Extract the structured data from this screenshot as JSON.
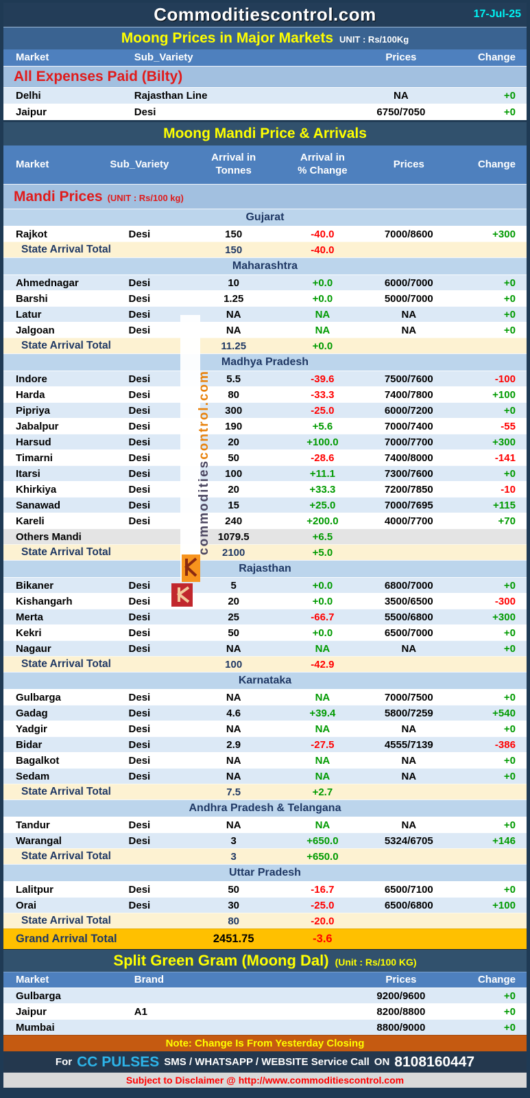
{
  "header": {
    "title": "Commoditiescontrol.com",
    "date": "17-Jul-25"
  },
  "major_markets": {
    "title": "Moong Prices in Major Markets",
    "unit": "UNIT : Rs/100Kg",
    "columns": [
      "Market",
      "Sub_Variety",
      "Prices",
      "Change"
    ],
    "section_label": "All Expenses Paid (Bilty)",
    "rows": [
      {
        "market": "Delhi",
        "sub": "Rajasthan Line",
        "prices": "NA",
        "change": "+0"
      },
      {
        "market": "Jaipur",
        "sub": "Desi",
        "prices": "6750/7050",
        "change": "+0"
      }
    ]
  },
  "mandi": {
    "title": "Moong Mandi Price & Arrivals",
    "columns": [
      "Market",
      "Sub_Variety",
      "Arrival in\nTonnes",
      "Arrival  in\n% Change",
      "Prices",
      "Change"
    ],
    "section_label": "Mandi Prices",
    "section_unit": "(UNIT : Rs/100 kg)",
    "total_label": "State Arrival Total",
    "states": [
      {
        "name": "Gujarat",
        "rows": [
          {
            "market": "Rajkot",
            "sub": "Desi",
            "tonnes": "150",
            "pct": "-40.0",
            "prices": "7000/8600",
            "change": "+300"
          }
        ],
        "total": {
          "tonnes": "150",
          "pct": "-40.0"
        }
      },
      {
        "name": "Maharashtra",
        "rows": [
          {
            "market": "Ahmednagar",
            "sub": "Desi",
            "tonnes": "10",
            "pct": "+0.0",
            "prices": "6000/7000",
            "change": "+0"
          },
          {
            "market": "Barshi",
            "sub": "Desi",
            "tonnes": "1.25",
            "pct": "+0.0",
            "prices": "5000/7000",
            "change": "+0"
          },
          {
            "market": "Latur",
            "sub": "Desi",
            "tonnes": "NA",
            "pct": "NA",
            "prices": "NA",
            "change": "+0"
          },
          {
            "market": "Jalgoan",
            "sub": "Desi",
            "tonnes": "NA",
            "pct": "NA",
            "prices": "NA",
            "change": "+0"
          }
        ],
        "total": {
          "tonnes": "11.25",
          "pct": "+0.0"
        }
      },
      {
        "name": "Madhya Pradesh",
        "rows": [
          {
            "market": "Indore",
            "sub": "Desi",
            "tonnes": "5.5",
            "pct": "-39.6",
            "prices": "7500/7600",
            "change": "-100"
          },
          {
            "market": "Harda",
            "sub": "Desi",
            "tonnes": "80",
            "pct": "-33.3",
            "prices": "7400/7800",
            "change": "+100"
          },
          {
            "market": "Pipriya",
            "sub": "Desi",
            "tonnes": "300",
            "pct": "-25.0",
            "prices": "6000/7200",
            "change": "+0"
          },
          {
            "market": "Jabalpur",
            "sub": "Desi",
            "tonnes": "190",
            "pct": "+5.6",
            "prices": "7000/7400",
            "change": "-55"
          },
          {
            "market": "Harsud",
            "sub": "Desi",
            "tonnes": "20",
            "pct": "+100.0",
            "prices": "7000/7700",
            "change": "+300"
          },
          {
            "market": "Timarni",
            "sub": "Desi",
            "tonnes": "50",
            "pct": "-28.6",
            "prices": "7400/8000",
            "change": "-141"
          },
          {
            "market": "Itarsi",
            "sub": "Desi",
            "tonnes": "100",
            "pct": "+11.1",
            "prices": "7300/7600",
            "change": "+0"
          },
          {
            "market": "Khirkiya",
            "sub": "Desi",
            "tonnes": "20",
            "pct": "+33.3",
            "prices": "7200/7850",
            "change": "-10"
          },
          {
            "market": "Sanawad",
            "sub": "Desi",
            "tonnes": "15",
            "pct": "+25.0",
            "prices": "7000/7695",
            "change": "+115"
          },
          {
            "market": "Kareli",
            "sub": "Desi",
            "tonnes": "240",
            "pct": "+200.0",
            "prices": "4000/7700",
            "change": "+70"
          },
          {
            "market": "Others Mandi",
            "sub": "",
            "tonnes": "1079.5",
            "pct": "+6.5",
            "prices": "",
            "change": "",
            "special": "others"
          }
        ],
        "total": {
          "tonnes": "2100",
          "pct": "+5.0"
        }
      },
      {
        "name": "Rajasthan",
        "rows": [
          {
            "market": "Bikaner",
            "sub": "Desi",
            "tonnes": "5",
            "pct": "+0.0",
            "prices": "6800/7000",
            "change": "+0"
          },
          {
            "market": "Kishangarh",
            "sub": "Desi",
            "tonnes": "20",
            "pct": "+0.0",
            "prices": "3500/6500",
            "change": "-300"
          },
          {
            "market": "Merta",
            "sub": "Desi",
            "tonnes": "25",
            "pct": "-66.7",
            "prices": "5500/6800",
            "change": "+300"
          },
          {
            "market": "Kekri",
            "sub": "Desi",
            "tonnes": "50",
            "pct": "+0.0",
            "prices": "6500/7000",
            "change": "+0"
          },
          {
            "market": "Nagaur",
            "sub": "Desi",
            "tonnes": "NA",
            "pct": "NA",
            "prices": "NA",
            "change": "+0"
          }
        ],
        "total": {
          "tonnes": "100",
          "pct": "-42.9"
        }
      },
      {
        "name": "Karnataka",
        "rows": [
          {
            "market": "Gulbarga",
            "sub": "Desi",
            "tonnes": "NA",
            "pct": "NA",
            "prices": "7000/7500",
            "change": "+0"
          },
          {
            "market": "Gadag",
            "sub": "Desi",
            "tonnes": "4.6",
            "pct": "+39.4",
            "prices": "5800/7259",
            "change": "+540"
          },
          {
            "market": "Yadgir",
            "sub": "Desi",
            "tonnes": "NA",
            "pct": "NA",
            "prices": "NA",
            "change": "+0"
          },
          {
            "market": "Bidar",
            "sub": "Desi",
            "tonnes": "2.9",
            "pct": "-27.5",
            "prices": "4555/7139",
            "change": "-386"
          },
          {
            "market": "Bagalkot",
            "sub": "Desi",
            "tonnes": "NA",
            "pct": "NA",
            "prices": "NA",
            "change": "+0"
          },
          {
            "market": "Sedam",
            "sub": "Desi",
            "tonnes": "NA",
            "pct": "NA",
            "prices": "NA",
            "change": "+0"
          }
        ],
        "total": {
          "tonnes": "7.5",
          "pct": "+2.7"
        }
      },
      {
        "name": "Andhra Pradesh & Telangana",
        "rows": [
          {
            "market": "Tandur",
            "sub": "Desi",
            "tonnes": "NA",
            "pct": "NA",
            "prices": "NA",
            "change": "+0"
          },
          {
            "market": "Warangal",
            "sub": "Desi",
            "tonnes": "3",
            "pct": "+650.0",
            "prices": "5324/6705",
            "change": "+146"
          }
        ],
        "total": {
          "tonnes": "3",
          "pct": "+650.0"
        }
      },
      {
        "name": "Uttar Pradesh",
        "rows": [
          {
            "market": "Lalitpur",
            "sub": "Desi",
            "tonnes": "50",
            "pct": "-16.7",
            "prices": "6500/7100",
            "change": "+0"
          },
          {
            "market": "Orai",
            "sub": "Desi",
            "tonnes": "30",
            "pct": "-25.0",
            "prices": "6500/6800",
            "change": "+100"
          }
        ],
        "total": {
          "tonnes": "80",
          "pct": "-20.0"
        }
      }
    ],
    "grand_total": {
      "label": "Grand Arrival Total",
      "tonnes": "2451.75",
      "pct": "-3.6"
    }
  },
  "split_gram": {
    "title": "Split Green Gram (Moong Dal)",
    "unit": "(Unit : Rs/100 KG)",
    "columns": [
      "Market",
      "Brand",
      "Prices",
      "Change"
    ],
    "rows": [
      {
        "market": "Gulbarga",
        "sub": "",
        "prices": "9200/9600",
        "change": "+0"
      },
      {
        "market": "Jaipur",
        "sub": "A1",
        "prices": "8200/8800",
        "change": "+0"
      },
      {
        "market": "Mumbai",
        "sub": "",
        "prices": "8800/9000",
        "change": "+0"
      }
    ]
  },
  "watermark": {
    "text": "commodities",
    "suffix": "control.com"
  },
  "footer": {
    "note": "Note: Change Is From Yesterday Closing",
    "service_prefix": "For",
    "service_brand": "CC PULSES",
    "service_text": "SMS / WHATSAPP / WEBSITE Service Call",
    "service_on": "ON",
    "service_phone": "8108160447",
    "disclaimer": "Subject to Disclaimer @  http://www.commoditiescontrol.com"
  },
  "colors": {
    "frame_navy": "#1f3a54",
    "title_navy": "#233d58",
    "blue_bar": "#3a6391",
    "mandi_bar": "#31516d",
    "colhdr_blue": "#4e80be",
    "band_blue": "#a2c0e0",
    "state_blue": "#bcd5ec",
    "zebra_blue": "#dce9f6",
    "cream": "#fdf2d2",
    "others_gray": "#e4e4e4",
    "amber": "#ffc000",
    "note_orange": "#c55a11",
    "ccbar_navy": "#24384e",
    "disc_gray": "#d9d9d9",
    "label_red": "#e01b1b",
    "val_red": "#ff0000",
    "green": "#009a00",
    "navy_text": "#1f3864",
    "yellow": "#ffff00",
    "cyan": "#00f3f3",
    "brand_cyan": "#2db3e8",
    "wm_dark": "#4b4660",
    "wm_orange": "#e8820c",
    "logo_orange": "#f7941d",
    "logo_red": "#c1272d"
  }
}
